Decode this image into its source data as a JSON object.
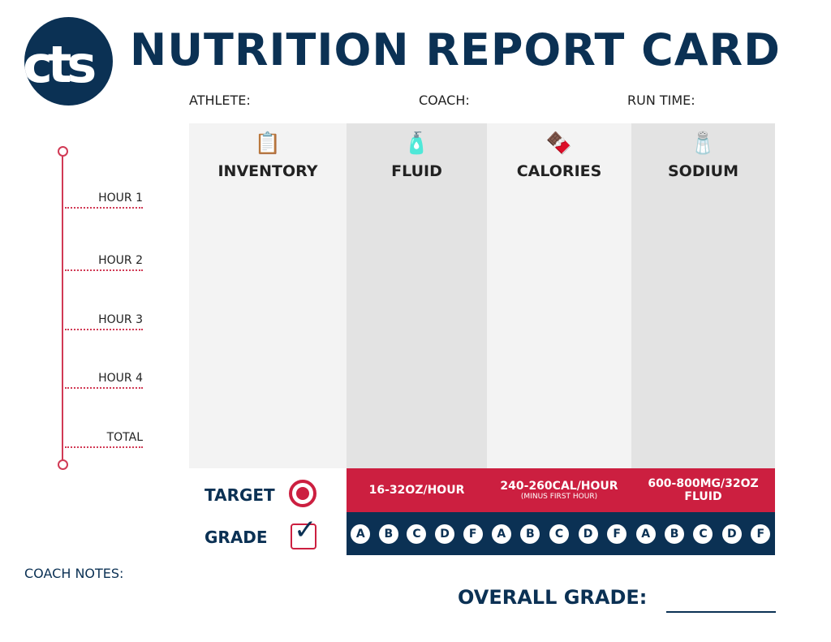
{
  "logo": {
    "text": "cts"
  },
  "title": "NUTRITION REPORT CARD",
  "fields": {
    "athlete": "ATHLETE:",
    "coach": "COACH:",
    "run_time": "RUN  TIME:"
  },
  "columns": [
    {
      "label": "INVENTORY",
      "icon": "clipboard-stopwatch-icon"
    },
    {
      "label": "FLUID",
      "icon": "water-bottle-icon"
    },
    {
      "label": "CALORIES",
      "icon": "energy-bar-icon"
    },
    {
      "label": "SODIUM",
      "icon": "salt-shaker-icon"
    }
  ],
  "timeline": [
    "HOUR 1",
    "HOUR 2",
    "HOUR 3",
    "HOUR 4",
    "TOTAL"
  ],
  "target_label": "TARGET",
  "grade_label": "GRADE",
  "targets": [
    {
      "text": "16-32OZ/HOUR",
      "note": ""
    },
    {
      "text": "240-260CAL/HOUR",
      "note": "(MINUS FIRST HOUR)"
    },
    {
      "text": "600-800MG/32OZ FLUID",
      "note": ""
    }
  ],
  "grades": [
    "A",
    "B",
    "C",
    "D",
    "F"
  ],
  "coach_notes": "COACH NOTES:",
  "overall_grade": "OVERALL GRADE:",
  "colors": {
    "navy": "#0b3154",
    "red": "#cc1f40",
    "light_gray": "#f3f3f3",
    "gray": "#e3e3e3"
  }
}
